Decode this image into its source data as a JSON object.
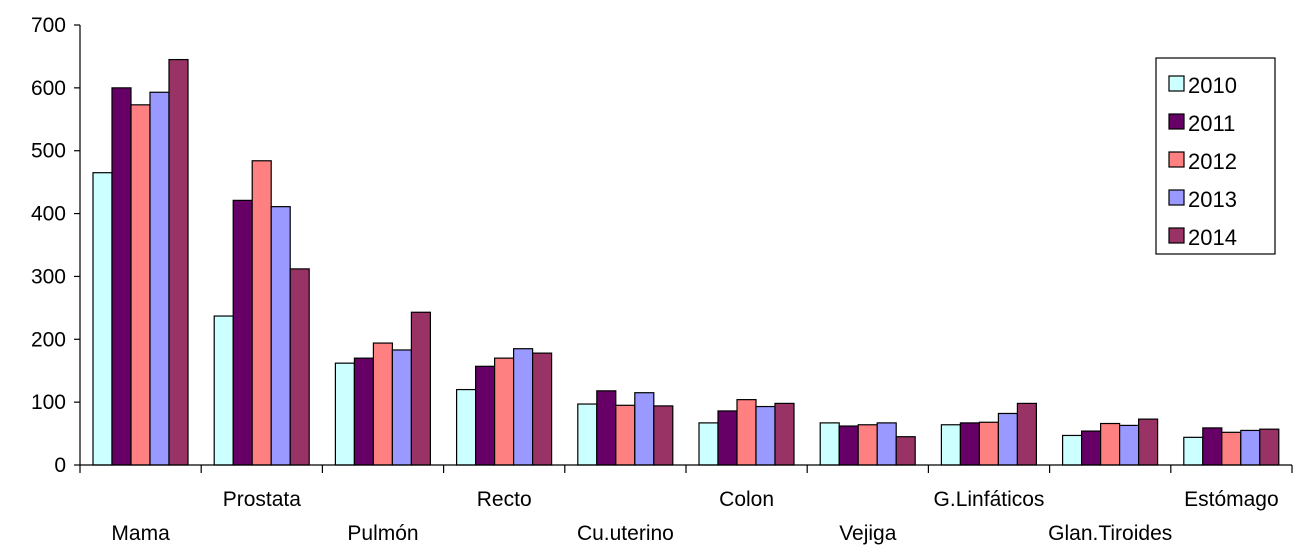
{
  "chart_data": {
    "type": "bar",
    "title": "",
    "xlabel": "",
    "ylabel": "",
    "ylim": [
      0,
      700
    ],
    "yticks": [
      "0",
      "100",
      "200",
      "300",
      "400",
      "500",
      "600",
      "700"
    ],
    "grid": false,
    "legend_position": "top-right",
    "categories": [
      "Mama",
      "Prostata",
      "Pulmón",
      "Recto",
      "Cu.uterino",
      "Colon",
      "Vejiga",
      "G.Linfáticos",
      "Glan.Tiroides",
      "Estómago"
    ],
    "series": [
      {
        "name": "2010",
        "color": "#CCFFFF",
        "values": [
          465,
          237,
          162,
          120,
          97,
          67,
          67,
          64,
          47,
          44
        ]
      },
      {
        "name": "2011",
        "color": "#660066",
        "values": [
          600,
          421,
          170,
          157,
          118,
          86,
          62,
          67,
          54,
          59
        ]
      },
      {
        "name": "2012",
        "color": "#FF8080",
        "values": [
          573,
          484,
          194,
          170,
          95,
          104,
          64,
          68,
          66,
          52
        ]
      },
      {
        "name": "2013",
        "color": "#9999FF",
        "values": [
          593,
          411,
          183,
          185,
          115,
          93,
          67,
          82,
          63,
          55
        ]
      },
      {
        "name": "2014",
        "color": "#993366",
        "values": [
          645,
          312,
          243,
          178,
          94,
          98,
          45,
          98,
          73,
          57
        ]
      }
    ]
  }
}
